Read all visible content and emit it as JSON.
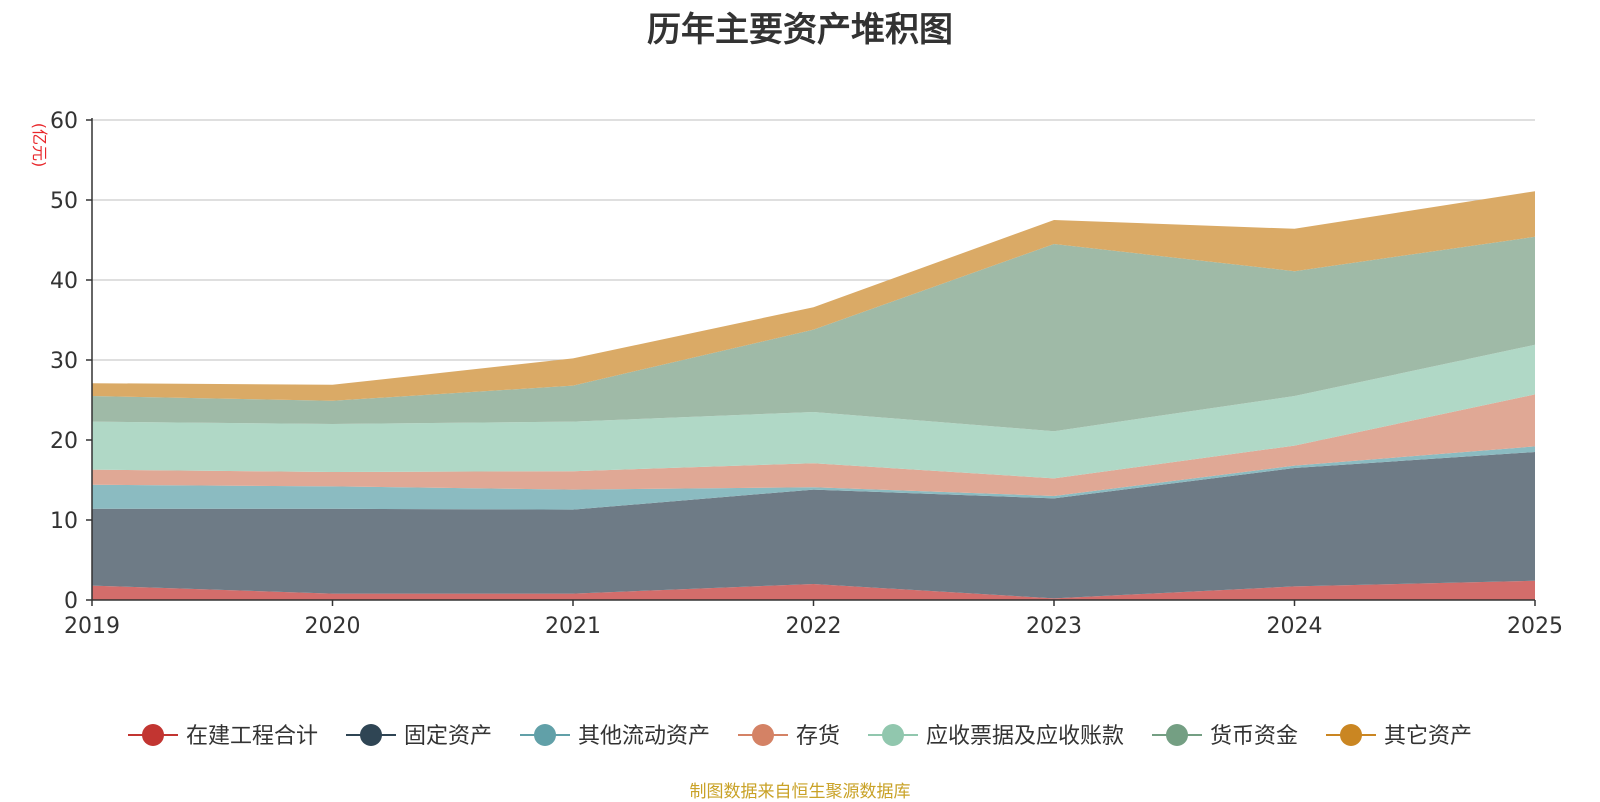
{
  "chart_data": {
    "type": "area",
    "stacked": true,
    "title": "历年主要资产堆积图",
    "ylabel": "(亿元)",
    "xlabel": "",
    "x": [
      "2019",
      "2020",
      "2021",
      "2022",
      "2023",
      "2024",
      "2025"
    ],
    "ylim": [
      0,
      60
    ],
    "yticks": [
      0,
      10,
      20,
      30,
      40,
      50,
      60
    ],
    "grid": true,
    "legend_position": "bottom",
    "series": [
      {
        "name": "在建工程合计",
        "color": "#c23531",
        "fill": "#d36d6b",
        "values": [
          1.8,
          0.8,
          0.8,
          2.0,
          0.2,
          1.7,
          2.4
        ]
      },
      {
        "name": "固定资产",
        "color": "#2f4554",
        "fill": "#6e7b86",
        "values": [
          9.6,
          10.6,
          10.5,
          11.8,
          12.5,
          14.8,
          16.1
        ]
      },
      {
        "name": "其他流动资产",
        "color": "#61a0a8",
        "fill": "#8bbbc1",
        "values": [
          3.0,
          2.8,
          2.5,
          0.3,
          0.3,
          0.3,
          0.7
        ]
      },
      {
        "name": "存货",
        "color": "#d48265",
        "fill": "#e0a895",
        "values": [
          1.9,
          1.8,
          2.3,
          3.0,
          2.2,
          2.5,
          6.5
        ]
      },
      {
        "name": "应收票据及应收账款",
        "color": "#91c7ae",
        "fill": "#b0d8c6",
        "values": [
          6.0,
          6.0,
          6.2,
          6.4,
          5.9,
          6.2,
          6.2
        ]
      },
      {
        "name": "货币资金",
        "color": "#749f83",
        "fill": "#9fbaa7",
        "values": [
          3.2,
          2.9,
          4.5,
          10.3,
          23.4,
          15.6,
          13.5
        ]
      },
      {
        "name": "其它资产",
        "color": "#ca8622",
        "fill": "#daaa66",
        "values": [
          1.6,
          2.0,
          3.4,
          2.8,
          3.0,
          5.3,
          5.7
        ]
      }
    ],
    "source": "制图数据来自恒生聚源数据库"
  }
}
